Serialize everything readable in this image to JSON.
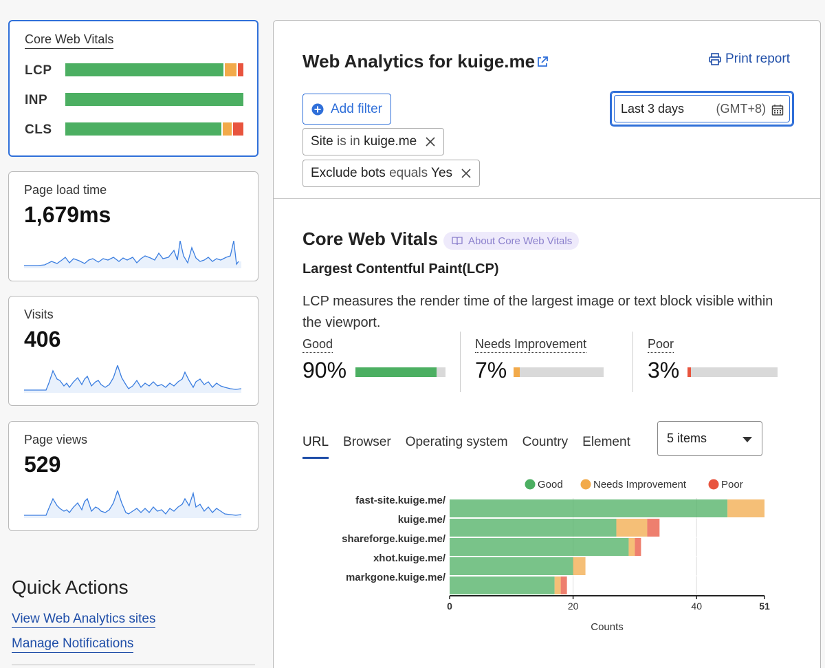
{
  "sidebar": {
    "cwv_card": {
      "title": "Core Web Vitals",
      "rows": [
        {
          "label": "LCP",
          "good": 90,
          "ni": 7,
          "poor": 3
        },
        {
          "label": "INP",
          "good": 100,
          "ni": 0,
          "poor": 0
        },
        {
          "label": "CLS",
          "good": 89,
          "ni": 5,
          "poor": 6
        }
      ]
    },
    "metrics": [
      {
        "title": "Page load time",
        "value": "1,679ms"
      },
      {
        "title": "Visits",
        "value": "406"
      },
      {
        "title": "Page views",
        "value": "529"
      }
    ],
    "quick_actions": {
      "title": "Quick Actions",
      "links": [
        "View Web Analytics sites",
        "Manage Notifications"
      ]
    }
  },
  "header": {
    "title": "Web Analytics for kuige.me",
    "print_label": "Print report",
    "add_filter_label": "Add filter",
    "date_range": "Last 3 days",
    "timezone": "(GMT+8)",
    "filters": [
      {
        "field": "Site",
        "op": "is in",
        "value": "kuige.me"
      },
      {
        "field": "Exclude bots",
        "op": "equals",
        "value": "Yes"
      }
    ]
  },
  "cwv": {
    "title": "Core Web Vitals",
    "about_label": "About Core Web Vitals",
    "metric_title": "Largest Contentful Paint(LCP)",
    "description": "LCP measures the render time of the largest image or text block visible within the viewport.",
    "distribution": [
      {
        "label": "Good",
        "value": "90%",
        "fraction": 0.9,
        "color": "#4caf62"
      },
      {
        "label": "Needs Improvement",
        "value": "7%",
        "fraction": 0.07,
        "color": "#f2aa4a"
      },
      {
        "label": "Poor",
        "value": "3%",
        "fraction": 0.03,
        "color": "#e8543e"
      }
    ],
    "tabs": [
      "URL",
      "Browser",
      "Operating system",
      "Country",
      "Element"
    ],
    "active_tab": "URL",
    "items_select": "5 items"
  },
  "colors": {
    "good": "#4caf62",
    "ni": "#f2aa4a",
    "poor": "#e8543e",
    "accent": "#2f6fd9"
  },
  "chart_data": {
    "type": "bar",
    "orientation": "horizontal",
    "stacked": true,
    "categories": [
      "fast-site.kuige.me/",
      "kuige.me/",
      "shareforge.kuige.me/",
      "xhot.kuige.me/",
      "markgone.kuige.me/"
    ],
    "series": [
      {
        "name": "Good",
        "values": [
          45,
          27,
          29,
          20,
          17
        ]
      },
      {
        "name": "Needs Improvement",
        "values": [
          6,
          5,
          1,
          2,
          1
        ]
      },
      {
        "name": "Poor",
        "values": [
          0,
          2,
          1,
          0,
          1
        ]
      }
    ],
    "xlabel": "Counts",
    "xlim": [
      0,
      51
    ],
    "xticks": [
      "0",
      "20",
      "40",
      "51"
    ],
    "legend": "top-right",
    "grid": true
  }
}
